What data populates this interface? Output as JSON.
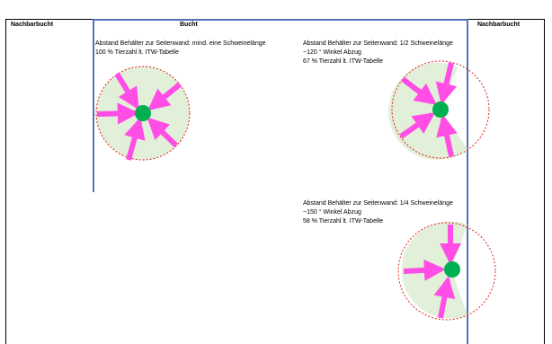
{
  "headers": {
    "left_neighbor": "Nachbarbucht",
    "pen": "Bucht",
    "right_neighbor": "Nachbarbucht"
  },
  "scenarios": [
    {
      "line1": "Abstand Behälter zur Seitenwand: mind. eine Schweinelänge",
      "line2": "100 % Tierzahl lt. ITW-Tabelle",
      "line3": ""
    },
    {
      "line1": "Abstand Behälter zur Seitenwand: 1/2 Schweinelänge",
      "line2": "~120 ° Winkel Abzug",
      "line3": "67 % Tierzahl lt. ITW-Tabelle"
    },
    {
      "line1": "Abstand Behälter zur Seitenwand: 1/4 Schweinelänge",
      "line2": "~150 ° Winkel Abzug",
      "line3": "58 % Tierzahl lt. ITW-Tabelle"
    }
  ],
  "colors": {
    "wall": "#4f72b8",
    "zone_fill": "#e2efd9",
    "zone_border": "#e02020",
    "arrow": "#ff4de6",
    "feeder": "#00b050"
  }
}
